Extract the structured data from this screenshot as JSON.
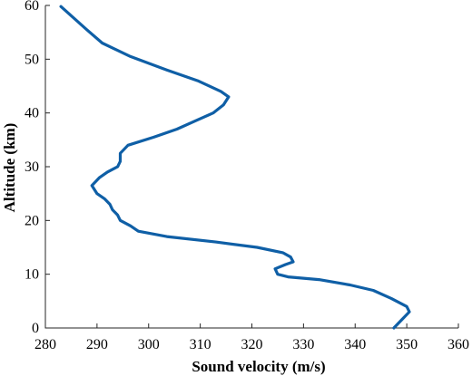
{
  "chart_data": {
    "type": "line",
    "xlabel": "Sound velocity (m/s)",
    "ylabel": "Altitude (km)",
    "xlim": [
      280,
      360
    ],
    "ylim": [
      0,
      60
    ],
    "xticks": [
      "280",
      "290",
      "300",
      "310",
      "320",
      "330",
      "340",
      "350",
      "360"
    ],
    "yticks": [
      "0",
      "10",
      "20",
      "30",
      "40",
      "50",
      "60"
    ],
    "grid": false,
    "color": "#0f5fa6",
    "series": [
      {
        "x": [
          347.5,
          349.0,
          350.5,
          350.0,
          347.0,
          343.5,
          339.0,
          333.0,
          327.0,
          325.0,
          324.5,
          326.5,
          328.0,
          327.5,
          326.0,
          321.0,
          313.0,
          303.5,
          298.0,
          296.5,
          294.5,
          294.0,
          293.0,
          292.5,
          291.5,
          290.0,
          289.0,
          290.5,
          292.0,
          294.0,
          294.5,
          294.5,
          296.0,
          301.0,
          305.5,
          309.0,
          312.5,
          314.5,
          315.5,
          314.0,
          309.5,
          303.5,
          296.5,
          291.0,
          288.0,
          283.0
        ],
        "y": [
          0,
          1.5,
          3.0,
          4.0,
          5.5,
          7.0,
          8.0,
          9.0,
          9.5,
          10.0,
          11.0,
          11.8,
          12.3,
          13.2,
          14.0,
          15.0,
          16.0,
          17.0,
          18.0,
          19.0,
          20.0,
          21.0,
          22.0,
          23.0,
          24.0,
          25.0,
          26.5,
          28.0,
          29.0,
          30.0,
          31.0,
          32.5,
          34.0,
          35.5,
          37.0,
          38.5,
          40.0,
          41.5,
          43.0,
          44.0,
          46.0,
          48.0,
          50.5,
          53.0,
          55.5,
          59.8
        ]
      }
    ]
  }
}
